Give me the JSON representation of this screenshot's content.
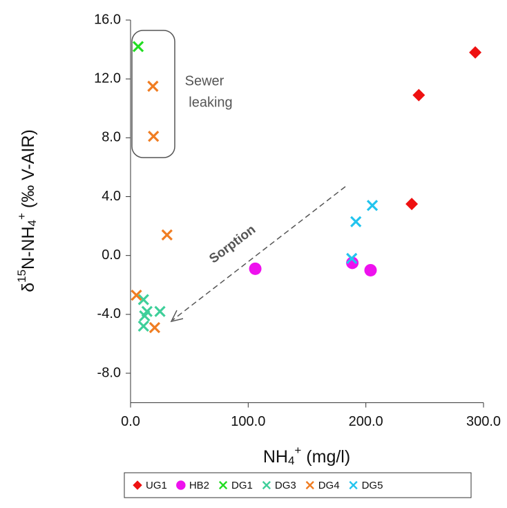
{
  "chart_data": {
    "type": "scatter",
    "x_label": [
      "NH",
      "4",
      "+",
      " (mg/l)"
    ],
    "y_label": [
      "δ",
      "15",
      "N-NH",
      "4",
      "+",
      " (‰ V-AIR)"
    ],
    "annotations": [
      "Sewer",
      "leaking",
      "Sorption"
    ],
    "xlim": [
      0,
      300
    ],
    "ylim": [
      -10,
      16
    ],
    "xticks": [
      {
        "value": 0,
        "label": "0.0"
      },
      {
        "value": 100,
        "label": "100.0"
      },
      {
        "value": 200,
        "label": "200.0"
      },
      {
        "value": 300,
        "label": "300.0"
      }
    ],
    "yticks": [
      {
        "value": -8,
        "label": "-8.0"
      },
      {
        "value": -4,
        "label": "-4.0"
      },
      {
        "value": 0,
        "label": "0.0"
      },
      {
        "value": 4,
        "label": "4.0"
      },
      {
        "value": 8,
        "label": "8.0"
      },
      {
        "value": 12,
        "label": "12.0"
      },
      {
        "value": 16,
        "label": "16.0"
      }
    ],
    "series": [
      {
        "name": "UG1",
        "color": "#ee1111",
        "marker": "diamond",
        "x": [
          293,
          245,
          239
        ],
        "values": [
          13.8,
          10.9,
          3.5
        ]
      },
      {
        "name": "HB2",
        "color": "#ee11ee",
        "marker": "circle",
        "x": [
          106,
          188.5,
          204
        ],
        "values": [
          -0.9,
          -0.5,
          -1.0
        ]
      },
      {
        "name": "DG1",
        "color": "#22dd22",
        "marker": "x",
        "x": [
          6.5
        ],
        "values": [
          14.2
        ]
      },
      {
        "name": "DG3",
        "color": "#3ecf9a",
        "marker": "x",
        "x": [
          11,
          14,
          11,
          25,
          12
        ],
        "values": [
          -3.0,
          -3.8,
          -4.8,
          -3.8,
          -4.1
        ]
      },
      {
        "name": "DG4",
        "color": "#f07d22",
        "marker": "x",
        "x": [
          19,
          19.5,
          31,
          5,
          20.5
        ],
        "values": [
          11.5,
          8.1,
          1.4,
          -2.7,
          -4.9
        ]
      },
      {
        "name": "DG5",
        "color": "#22c4ee",
        "marker": "x",
        "x": [
          188,
          191.5,
          205.5
        ],
        "values": [
          -0.2,
          2.3,
          3.4
        ]
      }
    ]
  }
}
